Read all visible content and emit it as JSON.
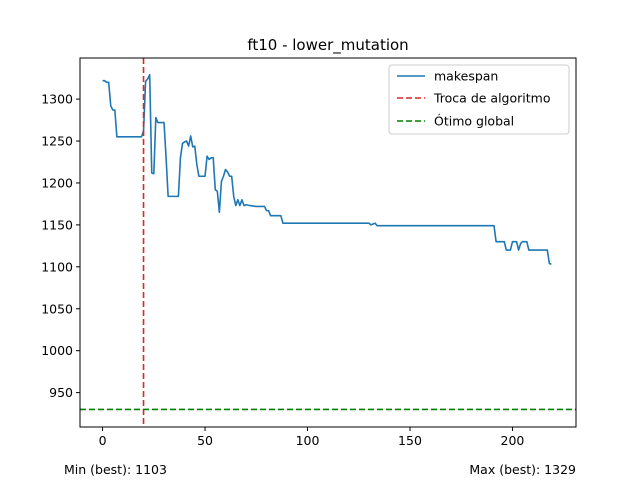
{
  "chart_data": {
    "type": "line",
    "title": "ft10 - lower_mutation",
    "xlabel": "",
    "ylabel": "",
    "xlim": [
      -11,
      231
    ],
    "ylim": [
      909,
      1349
    ],
    "x_ticks": [
      0,
      50,
      100,
      150,
      200
    ],
    "y_ticks": [
      950,
      1000,
      1050,
      1100,
      1150,
      1200,
      1250,
      1300
    ],
    "grid": false,
    "legend_position": "top-right",
    "series": [
      {
        "name": "makespan",
        "color": "#1f77b4",
        "style": "solid",
        "points": [
          [
            0,
            1322
          ],
          [
            1,
            1322
          ],
          [
            2,
            1320
          ],
          [
            3,
            1320
          ],
          [
            4,
            1292
          ],
          [
            5,
            1287
          ],
          [
            6,
            1287
          ],
          [
            7,
            1255
          ],
          [
            8,
            1255
          ],
          [
            12,
            1255
          ],
          [
            16,
            1255
          ],
          [
            19,
            1255
          ],
          [
            20,
            1262
          ],
          [
            21,
            1321
          ],
          [
            22,
            1324
          ],
          [
            23,
            1329
          ],
          [
            24,
            1212
          ],
          [
            25,
            1211
          ],
          [
            26,
            1278
          ],
          [
            27,
            1272
          ],
          [
            28,
            1272
          ],
          [
            29,
            1272
          ],
          [
            30,
            1272
          ],
          [
            31,
            1230
          ],
          [
            32,
            1184
          ],
          [
            33,
            1184
          ],
          [
            36,
            1184
          ],
          [
            37,
            1184
          ],
          [
            38,
            1230
          ],
          [
            39,
            1247
          ],
          [
            40,
            1249
          ],
          [
            41,
            1250
          ],
          [
            42,
            1244
          ],
          [
            43,
            1256
          ],
          [
            44,
            1243
          ],
          [
            45,
            1244
          ],
          [
            46,
            1222
          ],
          [
            47,
            1208
          ],
          [
            48,
            1208
          ],
          [
            49,
            1208
          ],
          [
            50,
            1208
          ],
          [
            51,
            1232
          ],
          [
            52,
            1228
          ],
          [
            53,
            1230
          ],
          [
            54,
            1230
          ],
          [
            55,
            1192
          ],
          [
            56,
            1190
          ],
          [
            57,
            1165
          ],
          [
            58,
            1202
          ],
          [
            59,
            1208
          ],
          [
            60,
            1216
          ],
          [
            61,
            1213
          ],
          [
            62,
            1208
          ],
          [
            63,
            1208
          ],
          [
            64,
            1184
          ],
          [
            65,
            1173
          ],
          [
            66,
            1180
          ],
          [
            67,
            1173
          ],
          [
            68,
            1180
          ],
          [
            69,
            1173
          ],
          [
            70,
            1174
          ],
          [
            72,
            1173
          ],
          [
            75,
            1172
          ],
          [
            77,
            1172
          ],
          [
            79,
            1172
          ],
          [
            80,
            1167
          ],
          [
            81,
            1167
          ],
          [
            82,
            1161
          ],
          [
            84,
            1161
          ],
          [
            87,
            1161
          ],
          [
            88,
            1152
          ],
          [
            90,
            1152
          ],
          [
            100,
            1152
          ],
          [
            110,
            1152
          ],
          [
            120,
            1152
          ],
          [
            128,
            1152
          ],
          [
            130,
            1152
          ],
          [
            131,
            1150
          ],
          [
            132,
            1151
          ],
          [
            133,
            1152
          ],
          [
            134,
            1149
          ],
          [
            140,
            1149
          ],
          [
            150,
            1149
          ],
          [
            160,
            1149
          ],
          [
            170,
            1149
          ],
          [
            180,
            1149
          ],
          [
            191,
            1149
          ],
          [
            192,
            1130
          ],
          [
            193,
            1130
          ],
          [
            196,
            1130
          ],
          [
            197,
            1120
          ],
          [
            199,
            1120
          ],
          [
            200,
            1130
          ],
          [
            202,
            1130
          ],
          [
            203,
            1120
          ],
          [
            204,
            1128
          ],
          [
            205,
            1130
          ],
          [
            207,
            1130
          ],
          [
            208,
            1120
          ],
          [
            210,
            1120
          ],
          [
            214,
            1120
          ],
          [
            217,
            1120
          ],
          [
            218,
            1104
          ],
          [
            219,
            1103
          ]
        ]
      },
      {
        "name": "Troca de algoritmo",
        "color": "#d62728",
        "style": "dashed",
        "orientation": "vertical",
        "x": 20
      },
      {
        "name": "Ótimo global",
        "color": "#008000",
        "style": "dashed",
        "orientation": "horizontal",
        "y": 930
      }
    ],
    "annotations": {
      "min_text": "Min (best): 1103",
      "max_text": "Max (best): 1329"
    }
  }
}
